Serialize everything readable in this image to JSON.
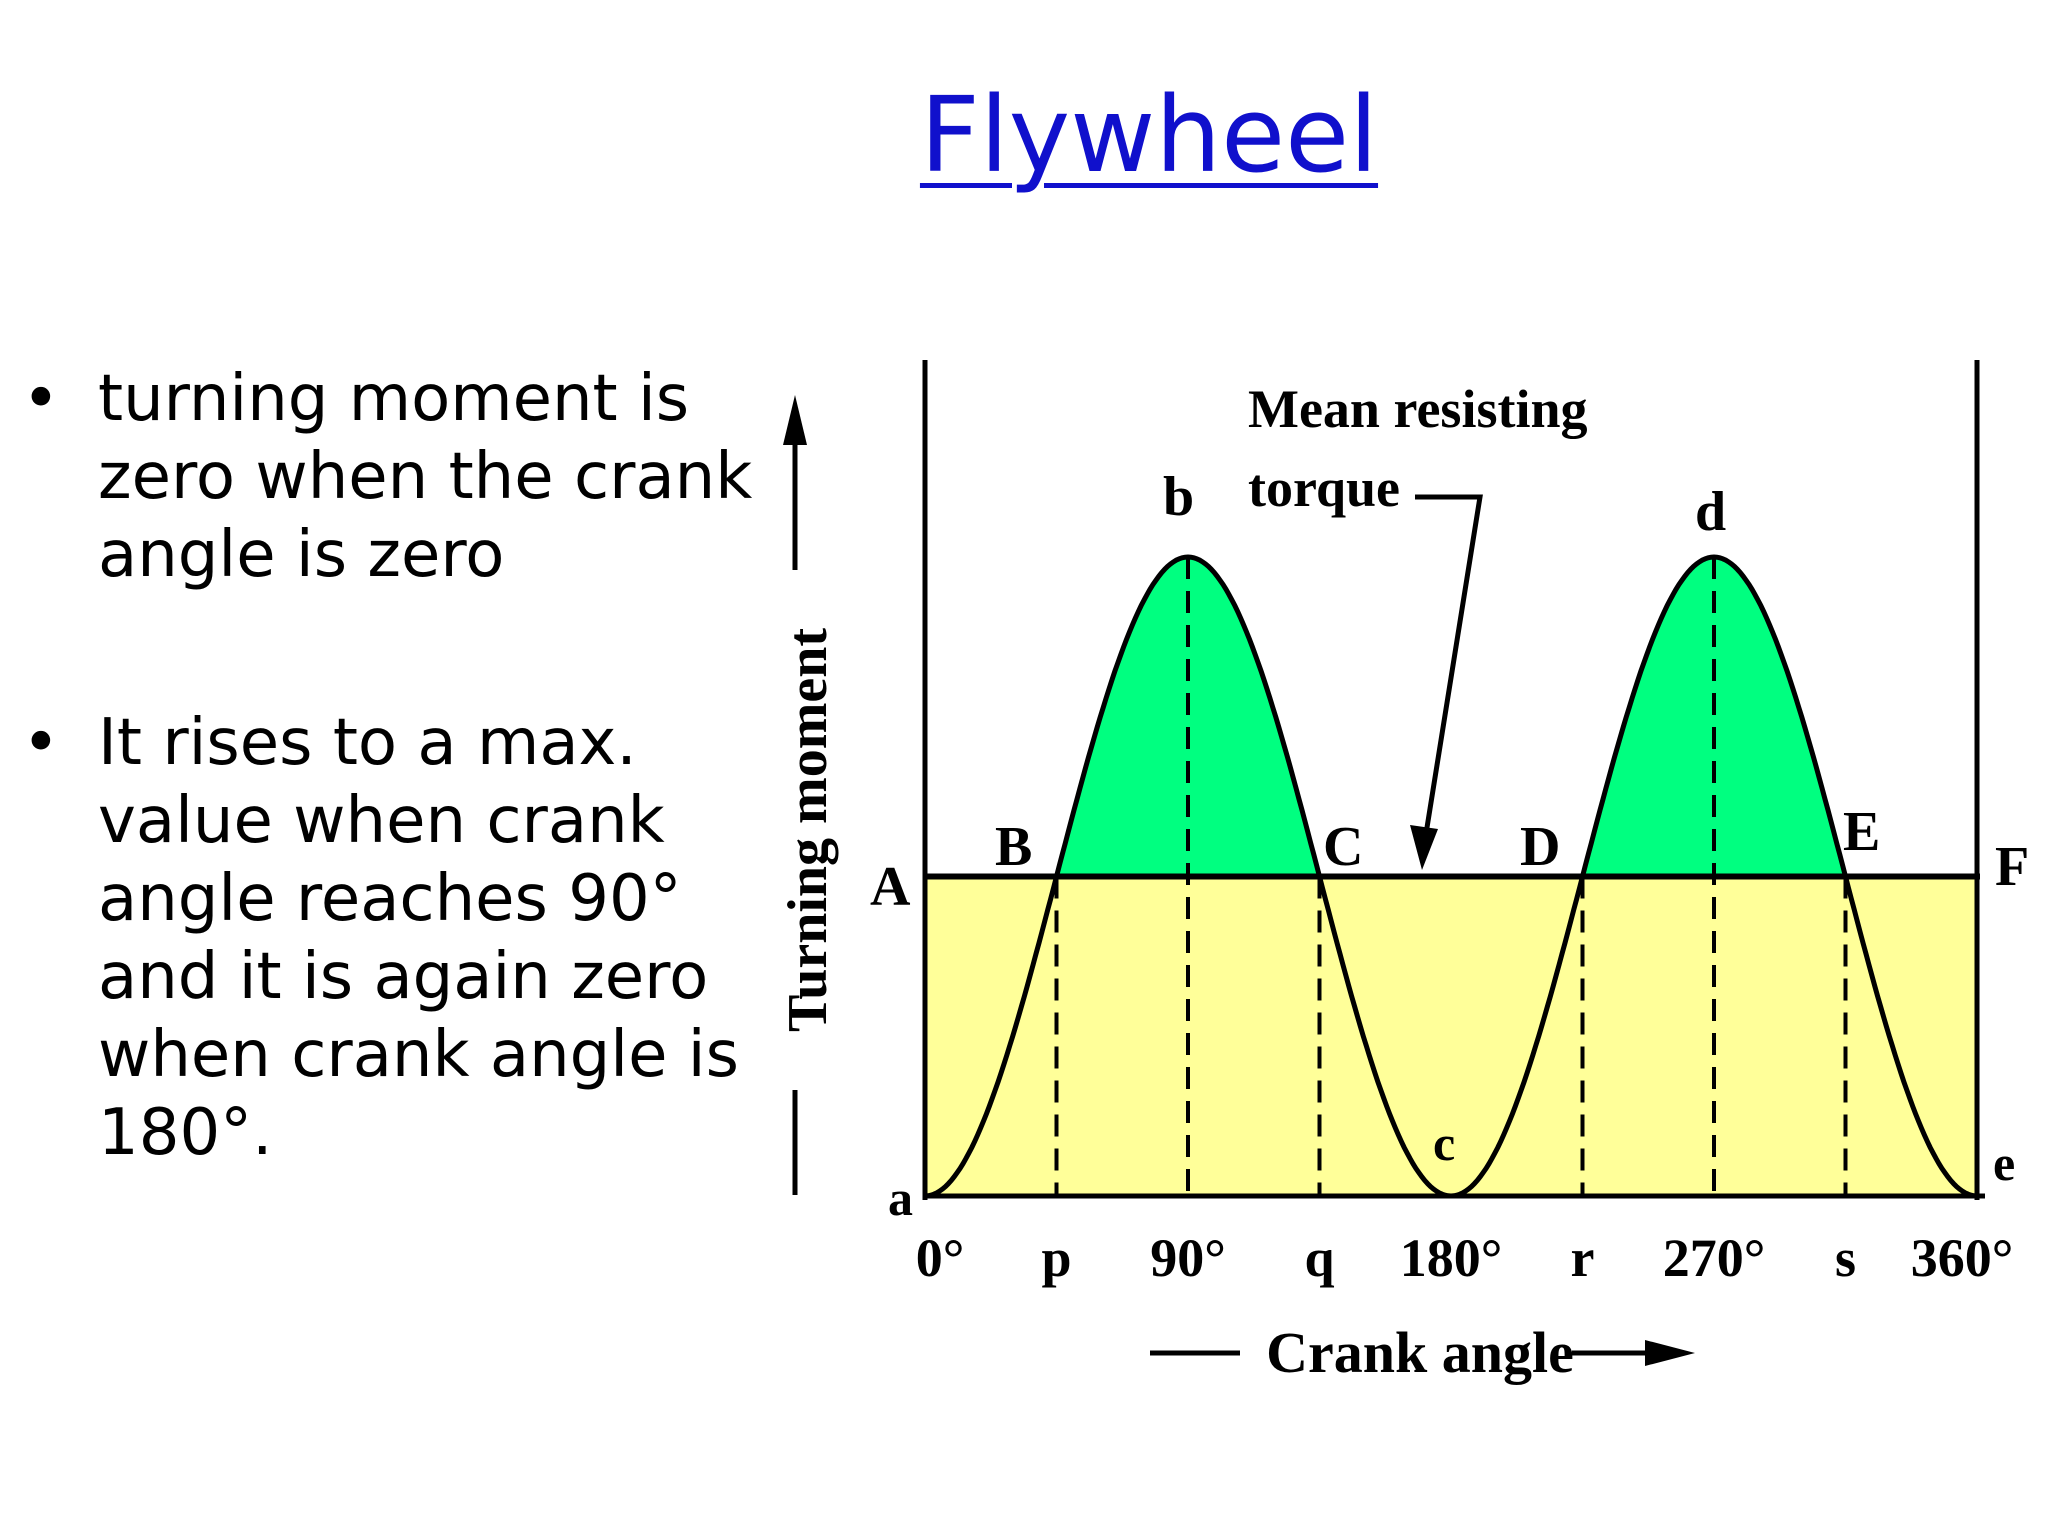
{
  "slide": {
    "title": "Flywheel",
    "bullets": [
      "turning moment is zero when the crank angle is zero",
      "It rises to a max. value when crank angle reaches 90° and it is again zero when crank angle is 180°."
    ],
    "bullet_glyph": "•"
  },
  "diagram": {
    "colors": {
      "upper_fill": "#00ff80",
      "lower_fill": "#ffff99",
      "line": "#000000"
    },
    "annotation": [
      "Mean resisting",
      "torque"
    ],
    "y_axis_label": "Turning moment",
    "x_axis_label": "Crank angle",
    "point_labels": {
      "A": "A",
      "B": "B",
      "C": "C",
      "D": "D",
      "E": "E",
      "F": "F",
      "a": "a",
      "b": "b",
      "c": "c",
      "d": "d",
      "e": "e"
    },
    "x_ticks": [
      "0°",
      "p",
      "90°",
      "q",
      "180°",
      "r",
      "270°",
      "s",
      "360°"
    ],
    "mean_line_level": 0.5,
    "curve": "turning moment vs crank angle, zero at 0°, 180°, 360°, maxima at 90° and 270°"
  }
}
